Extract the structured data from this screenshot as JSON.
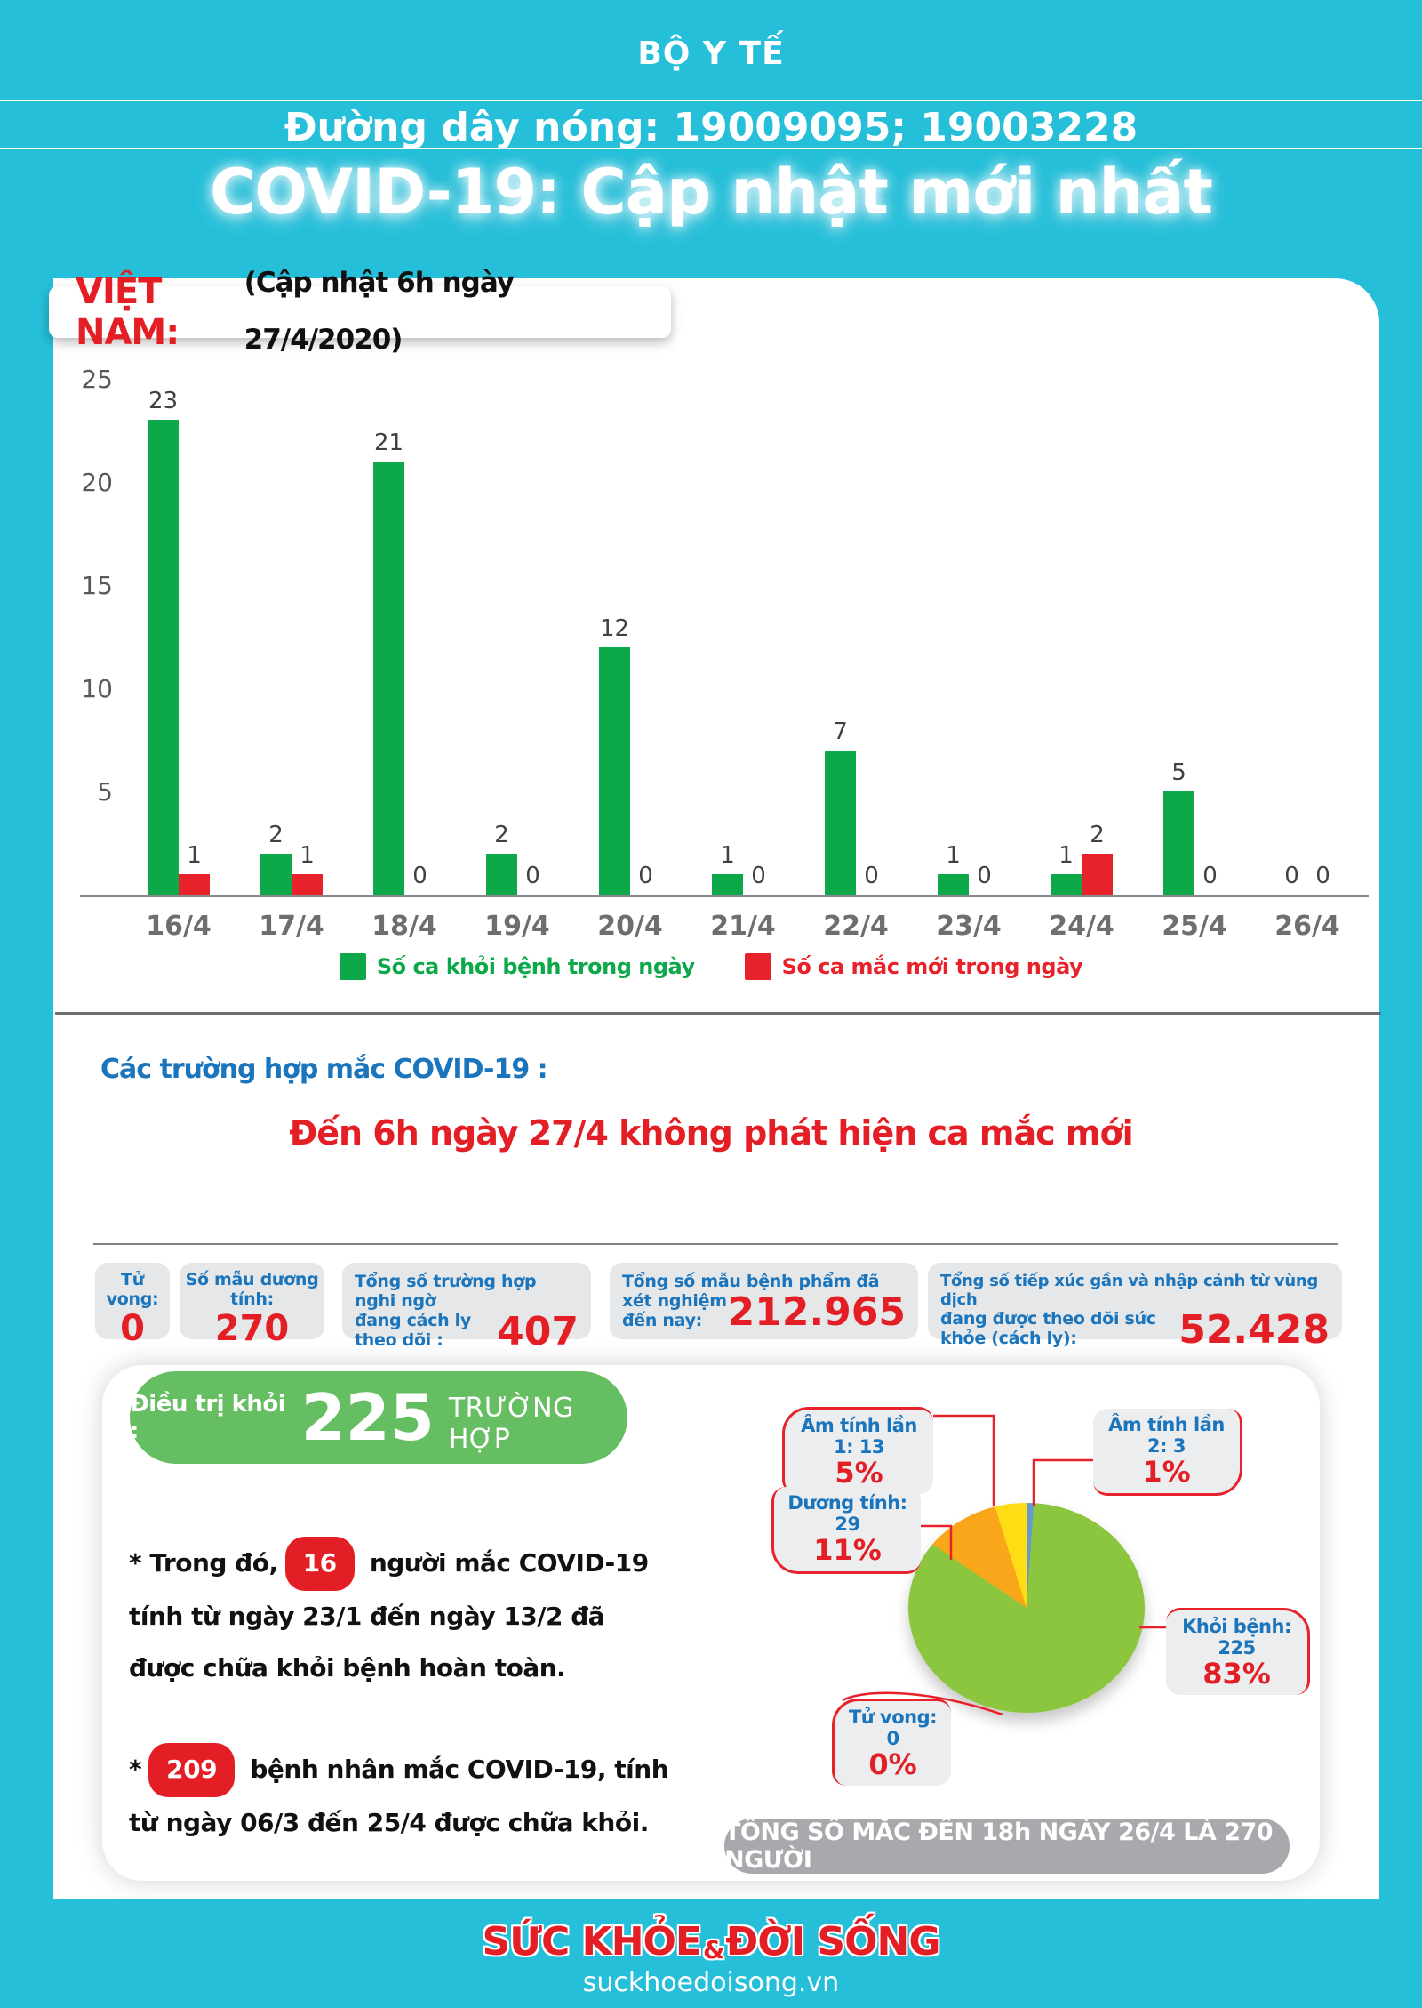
{
  "header": {
    "ministry": "BỘ Y TẾ",
    "hotline_label": "Đường dây nóng: ",
    "hotline_numbers": "19009095; 19003228",
    "title": "COVID-19: Cập nhật mới nhất"
  },
  "chart_panel": {
    "country": "VIỆT NAM:",
    "update_note": "(Cập nhật 6h ngày 27/4/2020)"
  },
  "chart_data": [
    {
      "type": "bar",
      "title": "VIỆT NAM: (Cập nhật 6h ngày 27/4/2020)",
      "categories": [
        "16/4",
        "17/4",
        "18/4",
        "19/4",
        "20/4",
        "21/4",
        "22/4",
        "23/4",
        "24/4",
        "25/4",
        "26/4"
      ],
      "series": [
        {
          "name": "Số ca khỏi bệnh trong ngày",
          "color": "#0CA84A",
          "values": [
            23,
            2,
            21,
            2,
            12,
            1,
            7,
            1,
            1,
            5,
            0
          ]
        },
        {
          "name": "Số ca mắc mới trong ngày",
          "color": "#E8222A",
          "values": [
            1,
            1,
            0,
            0,
            0,
            0,
            0,
            0,
            2,
            0,
            0
          ]
        }
      ],
      "ylim": [
        0,
        25
      ],
      "yticks": [
        5,
        10,
        15,
        20,
        25
      ],
      "grid": false,
      "legend": "bottom",
      "value_labels": true
    },
    {
      "type": "pie",
      "total": 270,
      "slices": [
        {
          "label": "Âm tính lần 2",
          "count": 3,
          "pct": "1%",
          "color": "#6699CC"
        },
        {
          "label": "Khỏi bệnh",
          "count": 225,
          "pct": "83%",
          "color": "#8CC63F"
        },
        {
          "label": "Dương tính",
          "count": 29,
          "pct": "11%",
          "color": "#FAA61A"
        },
        {
          "label": "Âm tính lần 1",
          "count": 13,
          "pct": "5%",
          "color": "#FFDD15"
        },
        {
          "label": "Tử vong",
          "count": 0,
          "pct": "0%",
          "color": "#BBBBBB"
        }
      ],
      "callouts": [
        {
          "label": "Âm tính lần 1: 13",
          "pct": "5%"
        },
        {
          "label": "Âm tính lần 2: 3",
          "pct": "1%"
        },
        {
          "label": "Dương tính: 29",
          "pct": "11%"
        },
        {
          "label": "Khỏi bệnh: 225",
          "pct": "83%"
        },
        {
          "label": "Tử vong: 0",
          "pct": "0%"
        }
      ]
    }
  ],
  "cases": {
    "heading": "Các trường hợp mắc COVID-19 :",
    "message": "Đến 6h ngày 27/4 không phát hiện ca mắc mới"
  },
  "stats": [
    {
      "label1": "Tử vong:",
      "label2": "",
      "value": "0"
    },
    {
      "label1": "Số mẫu dương tính:",
      "label2": "",
      "value": "270"
    },
    {
      "label1": "Tổng số trường hợp nghi ngờ",
      "label2": "đang cách ly theo dõi :",
      "value": "407"
    },
    {
      "label1": "Tổng số mẫu bệnh phẩm đã",
      "label2": "xét nghiệm đến nay:",
      "value": "212.965"
    },
    {
      "label1": "Tổng số tiếp xúc gần và nhập cảnh từ vùng dịch",
      "label2": "đang được theo dõi sức khỏe (cách ly):",
      "value": "52.428"
    }
  ],
  "card": {
    "pill_label": "Điều trị khỏi :",
    "pill_value": "225",
    "pill_unit": "TRƯỜNG HỢP",
    "notes": [
      {
        "prefix": "* Trong đó,",
        "badge": "16",
        "text": " người mắc COVID-19 tính từ ngày 23/1 đến ngày 13/2 đã được chữa khỏi bệnh hoàn toàn."
      },
      {
        "prefix": "*",
        "badge": "209",
        "text": " bệnh nhân  mắc COVID-19, tính từ ngày 06/3 đến 25/4 được chữa khỏi."
      }
    ]
  },
  "total_bar": {
    "text": "TỔNG SỐ MẮC ĐẾN 18h NGÀY 26/4 LÀ 270 NGƯỜI"
  },
  "footer": {
    "logo_1": "SỨC KHỎE",
    "logo_amp": "&",
    "logo_2": "ĐỜI SỐNG",
    "website": "suckhoedoisong.vn"
  },
  "colors": {
    "background": "#25BFD9",
    "recovered_green": "#0CA84A",
    "new_case_red": "#E8222A",
    "accent_red": "#E31E25",
    "accent_blue": "#1B75BC",
    "pill_green": "#66BE63",
    "pie_green": "#8CC63F",
    "pie_orange": "#FAA61A",
    "pie_yellow": "#FFDD15",
    "pie_blue": "#6699CC",
    "box_gray": "#E6E7E8",
    "bar_gray": "#A7A9AC"
  }
}
